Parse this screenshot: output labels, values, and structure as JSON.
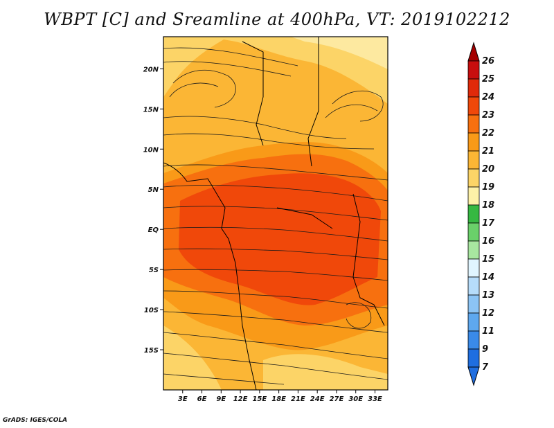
{
  "title": "WBPT [C] and Sreamline at 400hPa, VT: 2019102212",
  "credit": "GrADS: IGES/COLA",
  "map": {
    "lon_range": [
      0,
      35
    ],
    "lat_range": [
      -20,
      24
    ],
    "lon_ticks": [
      "3E",
      "6E",
      "9E",
      "12E",
      "15E",
      "18E",
      "21E",
      "24E",
      "27E",
      "30E",
      "33E"
    ],
    "lon_tick_values": [
      3,
      6,
      9,
      12,
      15,
      18,
      21,
      24,
      27,
      30,
      33
    ],
    "lat_ticks": [
      "20N",
      "15N",
      "10N",
      "5N",
      "EQ",
      "5S",
      "10S",
      "15S"
    ],
    "lat_tick_values": [
      20,
      15,
      10,
      5,
      0,
      -5,
      -10,
      -15
    ]
  },
  "colorbar": {
    "labels": [
      "26",
      "25",
      "24",
      "23",
      "22",
      "21",
      "20",
      "19",
      "18",
      "17",
      "16",
      "15",
      "14",
      "13",
      "12",
      "11",
      "9",
      "7"
    ],
    "colors": [
      "#a50000",
      "#c80e0e",
      "#e02a0a",
      "#f0480a",
      "#f7700f",
      "#f99a18",
      "#fbb635",
      "#fcd467",
      "#fdf1a8",
      "#36b842",
      "#6ad06a",
      "#a8e6a0",
      "#e0f5ff",
      "#b6dcfa",
      "#8cc4f5",
      "#5ea8ef",
      "#3a8ae8",
      "#1f6ee0"
    ]
  }
}
